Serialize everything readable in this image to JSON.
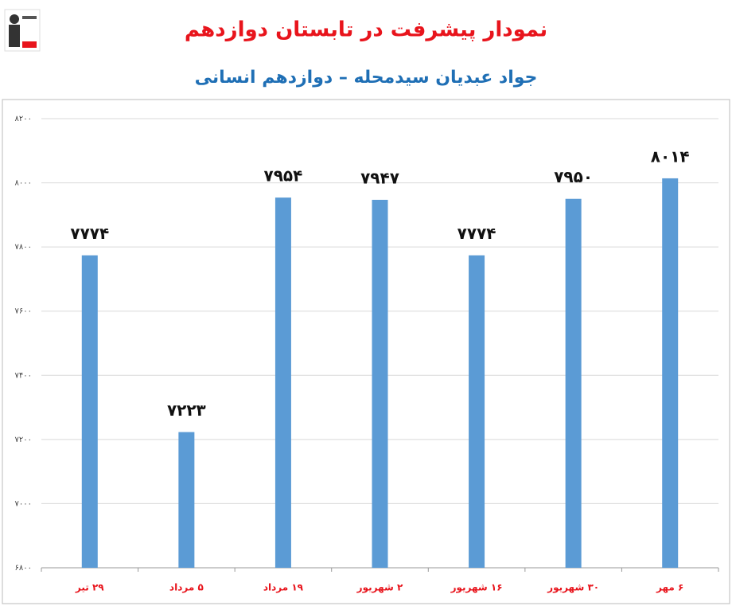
{
  "chart_data": {
    "type": "bar",
    "title": "نمودار پیشرفت در تابستان دوازدهم",
    "subtitle": "جواد عبدیان سیدمحله – دوازدهم انسانی",
    "categories": [
      "۲۹ تیر",
      "۵ مرداد",
      "۱۹ مرداد",
      "۲ شهریور",
      "۱۶ شهریور",
      "۳۰ شهریور",
      "۶ مهر"
    ],
    "values": [
      7774,
      7223,
      7954,
      7947,
      7774,
      7950,
      8014
    ],
    "value_labels": [
      "۷۷۷۴",
      "۷۲۲۳",
      "۷۹۵۴",
      "۷۹۴۷",
      "۷۷۷۴",
      "۷۹۵۰",
      "۸۰۱۴"
    ],
    "color": "#5b9bd5",
    "ylim": [
      6800,
      8200
    ],
    "yticks": [
      {
        "value": 6800,
        "label": "۶۸۰۰"
      },
      {
        "value": 7000,
        "label": "۷۰۰۰"
      },
      {
        "value": 7200,
        "label": "۷۲۰۰"
      },
      {
        "value": 7400,
        "label": "۷۴۰۰"
      },
      {
        "value": 7600,
        "label": "۷۶۰۰"
      },
      {
        "value": 7800,
        "label": "۷۸۰۰"
      },
      {
        "value": 8000,
        "label": "۸۰۰۰"
      },
      {
        "value": 8200,
        "label": "۸۲۰۰"
      }
    ],
    "grid": true
  }
}
